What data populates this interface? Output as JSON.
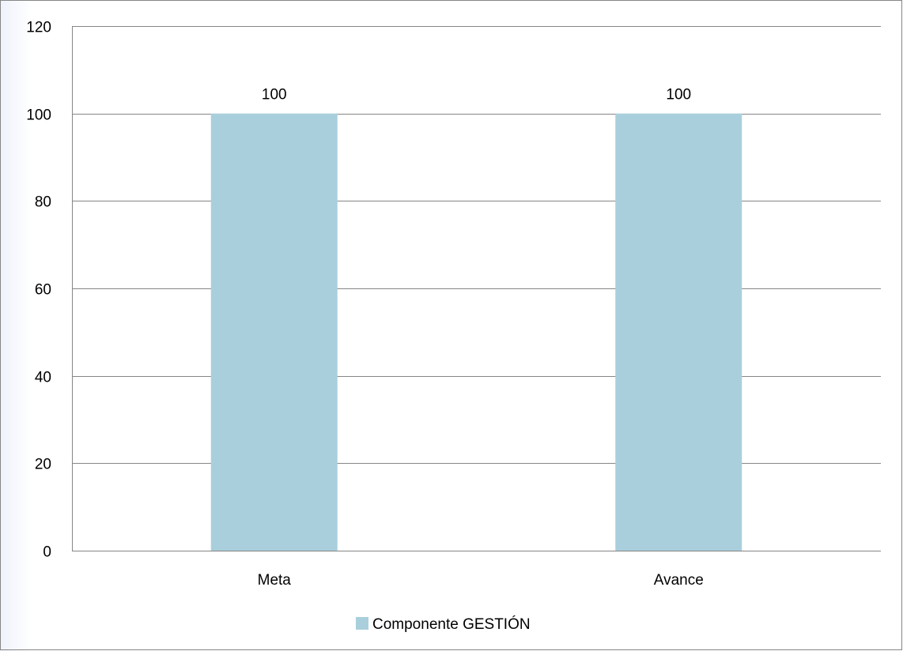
{
  "chart_data": {
    "type": "bar",
    "categories": [
      "Meta",
      "Avance"
    ],
    "series": [
      {
        "name": "Componente GESTIÓN",
        "values": [
          100,
          100
        ],
        "color": "#a9cfdc"
      }
    ],
    "data_labels": [
      "100",
      "100"
    ],
    "yticks": [
      0,
      20,
      40,
      60,
      80,
      100,
      120
    ],
    "ylim": [
      0,
      120
    ],
    "grid": true,
    "legend_position": "bottom",
    "title": "",
    "xlabel": "",
    "ylabel": ""
  },
  "colors": {
    "bar": "#a9cfdc",
    "gridline": "#868686",
    "frame": "#868686"
  }
}
